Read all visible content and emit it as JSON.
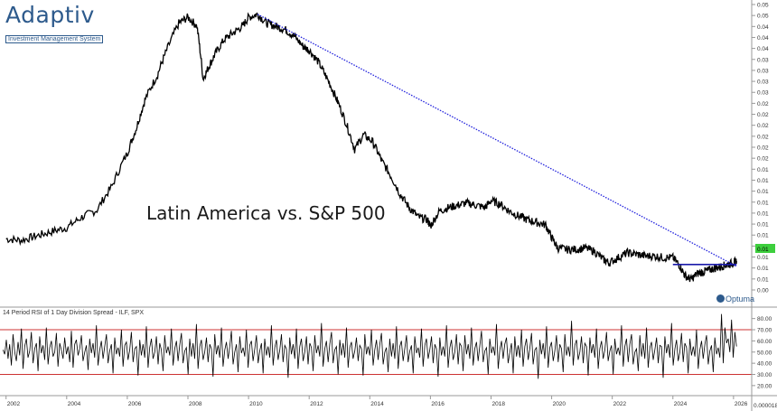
{
  "logo": {
    "name": "Adaptiv",
    "tagline": "Investment Management System"
  },
  "watermark": "Optuma",
  "chart_data": [
    {
      "type": "line",
      "title": "Latin America vs. S&P 500",
      "right_axis_ticks": [
        "0.05",
        "0.05",
        "0.04",
        "0.04",
        "0.04",
        "0.03",
        "0.03",
        "0.03",
        "0.03",
        "0.02",
        "0.02",
        "0.02",
        "0.02",
        "0.02",
        "0.02",
        "0.01",
        "0.01",
        "0.01",
        "0.01",
        "0.01",
        "0.01",
        "0.01",
        "0.01",
        "0.01",
        "0.01",
        "0.01",
        "0.00"
      ],
      "last_value_label": "0.01",
      "last_value_color": "#3dcf3d",
      "line_color": "#000000",
      "trendline_color": "#2222dd",
      "breakout_line_color": "#1a1aaa",
      "x": [
        2002.0,
        2002.5,
        2003.0,
        2003.5,
        2004.0,
        2004.5,
        2005.0,
        2005.5,
        2006.0,
        2006.3,
        2006.6,
        2007.0,
        2007.3,
        2007.7,
        2008.0,
        2008.3,
        2008.5,
        2008.7,
        2008.9,
        2009.2,
        2009.5,
        2009.8,
        2010.0,
        2010.3,
        2010.6,
        2010.9,
        2011.2,
        2011.5,
        2011.8,
        2012.0,
        2012.3,
        2012.6,
        2012.9,
        2013.2,
        2013.5,
        2013.8,
        2014.1,
        2014.4,
        2014.7,
        2015.0,
        2015.3,
        2015.6,
        2015.9,
        2016.0,
        2016.3,
        2016.6,
        2016.9,
        2017.2,
        2017.5,
        2017.8,
        2018.0,
        2018.3,
        2018.6,
        2018.9,
        2019.2,
        2019.5,
        2019.8,
        2020.0,
        2020.2,
        2020.5,
        2020.8,
        2021.1,
        2021.4,
        2021.7,
        2021.9,
        2022.2,
        2022.5,
        2022.8,
        2023.1,
        2023.4,
        2023.7,
        2024.0,
        2024.2,
        2024.4,
        2024.6,
        2024.8,
        2025.0,
        2025.2,
        2025.4,
        2025.6,
        2025.8,
        2026.0,
        2026.1
      ],
      "y": [
        0.0094,
        0.0093,
        0.0096,
        0.0099,
        0.0102,
        0.011,
        0.0116,
        0.0138,
        0.0175,
        0.021,
        0.026,
        0.031,
        0.037,
        0.045,
        0.047,
        0.044,
        0.03,
        0.033,
        0.036,
        0.04,
        0.042,
        0.044,
        0.047,
        0.048,
        0.045,
        0.044,
        0.043,
        0.041,
        0.038,
        0.037,
        0.034,
        0.03,
        0.026,
        0.022,
        0.018,
        0.02,
        0.019,
        0.0165,
        0.0148,
        0.013,
        0.0118,
        0.011,
        0.0108,
        0.0103,
        0.0115,
        0.0118,
        0.012,
        0.0122,
        0.012,
        0.0118,
        0.0124,
        0.0121,
        0.0115,
        0.0111,
        0.0108,
        0.0106,
        0.0104,
        0.0095,
        0.0088,
        0.0087,
        0.0087,
        0.0088,
        0.0086,
        0.0081,
        0.0079,
        0.0082,
        0.0085,
        0.0084,
        0.0083,
        0.0083,
        0.0082,
        0.0082,
        0.0078,
        0.0072,
        0.007,
        0.0073,
        0.0074,
        0.0075,
        0.0076,
        0.0077,
        0.0078,
        0.0079,
        0.008
      ],
      "trendline": {
        "x": [
          2010.3,
          2026.1
        ],
        "y": [
          0.048,
          0.0077
        ]
      },
      "breakout_line": {
        "x": [
          2024.0,
          2026.1
        ],
        "y": [
          0.0078,
          0.0078
        ]
      },
      "xlim": [
        2001.8,
        2026.6
      ]
    },
    {
      "type": "line",
      "title": "14 Period RSI of 1 Day Division Spread - ILF, SPX",
      "yticks": [
        20,
        30,
        40,
        50,
        60,
        70,
        80
      ],
      "ytick_labels": [
        "20.00",
        "30.00",
        "40.00",
        "50.00",
        "60.00",
        "70.00",
        "80.00"
      ],
      "ylim": [
        11,
        87
      ],
      "reference_lines": [
        30,
        70
      ],
      "reference_color": "#cc3333",
      "x_tick_labels": [
        "2002",
        "2004",
        "2006",
        "2008",
        "2010",
        "2012",
        "2014",
        "2016",
        "2018",
        "2020",
        "2022",
        "2024",
        "2026"
      ],
      "x_ticks": [
        2002,
        2004,
        2006,
        2008,
        2010,
        2012,
        2014,
        2016,
        2018,
        2020,
        2022,
        2024,
        2026
      ],
      "corner_label": "0.000018",
      "rsi_values": [
        52,
        48,
        61,
        44,
        57,
        38,
        66,
        50,
        42,
        59,
        47,
        71,
        35,
        55,
        62,
        45,
        51,
        68,
        40,
        53,
        58,
        33,
        64,
        49,
        56,
        43,
        72,
        39,
        54,
        60,
        46,
        50,
        67,
        37,
        58,
        52,
        44,
        63,
        48,
        55,
        41,
        69,
        36,
        57,
        61,
        47,
        53,
        65,
        42,
        50,
        56,
        34,
        62,
        49,
        58,
        45,
        74,
        38,
        52,
        60,
        44,
        55,
        66,
        40,
        51,
        57,
        31,
        63,
        48,
        54,
        46,
        70,
        37,
        56,
        59,
        43,
        52,
        68,
        41,
        53,
        55,
        29,
        61,
        47,
        57,
        45,
        73,
        36,
        54,
        62,
        44,
        50,
        64,
        39,
        58,
        52,
        33,
        65,
        49,
        55,
        47,
        71,
        38,
        53,
        60,
        42,
        56,
        67,
        40,
        51,
        54,
        30,
        62,
        46,
        58,
        44,
        75,
        35,
        55,
        61,
        43,
        50,
        63,
        41,
        57,
        53,
        28,
        66,
        48,
        56,
        45,
        72,
        37,
        52,
        59,
        44,
        55,
        69,
        39,
        50,
        57,
        32,
        64,
        49,
        54,
        46,
        70,
        36,
        56,
        60,
        42,
        53,
        65,
        40,
        51,
        58,
        31,
        62,
        47,
        55,
        45,
        74,
        38,
        54,
        61,
        43,
        52,
        66,
        41,
        56,
        53,
        27,
        63,
        48,
        57,
        44,
        71,
        35,
        55,
        62,
        42,
        50,
        64,
        39,
        58,
        54,
        33,
        65,
        49,
        56,
        46,
        76,
        37,
        53,
        60,
        41,
        57,
        68,
        40,
        52,
        55,
        30,
        61,
        47,
        58,
        45,
        72,
        36,
        54,
        59,
        44,
        51,
        63,
        42,
        56,
        53,
        29,
        66,
        48,
        55,
        47,
        70,
        38,
        52,
        61,
        43,
        57,
        67,
        39,
        50,
        54,
        32,
        62,
        46,
        58,
        44,
        73,
        35,
        55,
        60,
        42,
        53,
        65,
        41,
        51,
        56,
        31,
        64,
        49,
        54,
        45,
        71,
        37,
        56,
        62,
        44,
        52,
        64,
        40,
        57,
        53,
        28,
        63,
        47,
        55,
        46,
        74,
        36,
        54,
        61,
        43,
        50,
        66,
        39,
        58,
        55,
        33,
        65,
        48,
        57,
        44,
        72,
        38,
        53,
        59,
        42,
        56,
        69,
        41,
        51,
        54,
        30,
        62,
        49,
        55,
        47,
        75,
        35,
        52,
        60,
        44,
        57,
        63,
        40,
        50,
        58,
        31,
        64,
        46,
        56,
        45,
        70,
        37,
        55,
        62,
        43,
        53,
        67,
        39,
        52,
        54,
        26,
        61,
        48,
        58,
        44,
        73,
        36,
        54,
        59,
        42,
        51,
        65,
        41,
        57,
        53,
        32,
        66,
        47,
        55,
        46,
        78,
        38,
        56,
        61,
        43,
        50,
        64,
        40,
        58,
        55,
        29,
        63,
        49,
        57,
        45,
        71,
        35,
        53,
        60,
        44,
        52,
        68,
        42,
        51,
        56,
        30,
        62,
        48,
        54,
        47,
        74,
        37,
        55,
        62,
        41,
        57,
        66,
        39,
        50,
        53,
        33,
        65,
        46,
        58,
        44,
        72,
        36,
        54,
        59,
        43,
        52,
        63,
        40,
        56,
        55,
        27,
        64,
        49,
        57,
        45,
        76,
        38,
        53,
        61,
        42,
        50,
        67,
        41,
        58,
        54,
        31,
        62,
        47,
        55,
        46,
        70,
        35,
        52,
        60,
        44,
        57,
        65,
        39,
        51,
        56,
        32,
        63,
        48,
        54,
        45,
        84,
        40,
        72,
        58,
        62,
        50,
        79,
        45,
        68,
        55
      ]
    }
  ]
}
